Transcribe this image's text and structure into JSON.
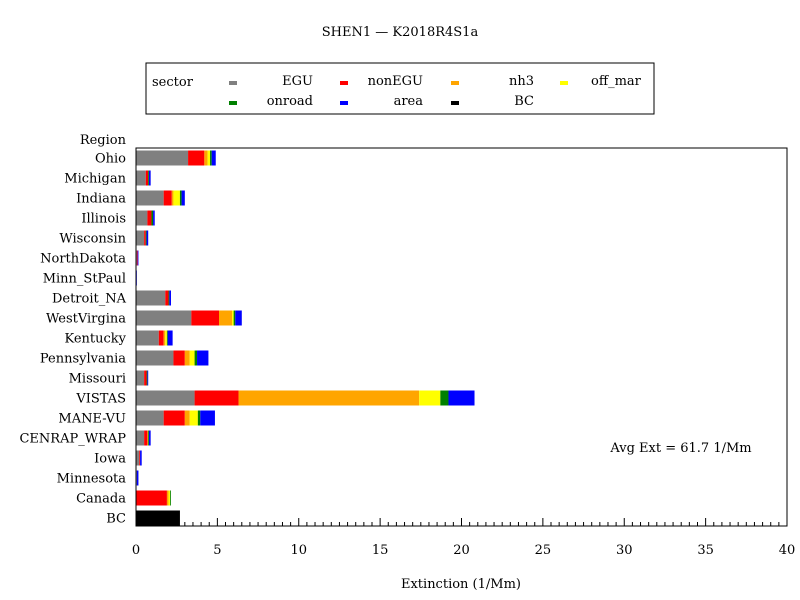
{
  "chart_data": {
    "type": "bar",
    "orientation": "horizontal",
    "stacked": true,
    "title": "SHEN1 — K2018R4S1a",
    "xlabel": "Extinction (1/Mm)",
    "ylabel": "Region",
    "xlim": [
      0,
      40
    ],
    "x_ticks": [
      0,
      5,
      10,
      15,
      20,
      25,
      30,
      35,
      40
    ],
    "legend_title": "sector",
    "legend_position": "top-center",
    "annotation": "Avg Ext =  61.7 1/Mm",
    "categories": [
      "Ohio",
      "Michigan",
      "Indiana",
      "Illinois",
      "Wisconsin",
      "NorthDakota",
      "Minn_StPaul",
      "Detroit_NA",
      "WestVirgina",
      "Kentucky",
      "Pennsylvania",
      "Missouri",
      "VISTAS",
      "MANE-VU",
      "CENRAP_WRAP",
      "Iowa",
      "Minnesota",
      "Canada",
      "BC"
    ],
    "series": [
      {
        "name": "EGU",
        "color": "#808080",
        "values": [
          3.2,
          0.6,
          1.7,
          0.7,
          0.5,
          0.05,
          0.0,
          1.8,
          3.4,
          1.4,
          2.3,
          0.5,
          3.6,
          1.7,
          0.5,
          0.2,
          0.05,
          0.0,
          0.0
        ]
      },
      {
        "name": "nonEGU",
        "color": "#ff0000",
        "values": [
          1.0,
          0.15,
          0.5,
          0.25,
          0.1,
          0.05,
          0.0,
          0.2,
          1.7,
          0.3,
          0.7,
          0.15,
          2.7,
          1.3,
          0.2,
          0.05,
          0.0,
          1.9,
          0.0
        ]
      },
      {
        "name": "nh3",
        "color": "#ffa500",
        "values": [
          0.2,
          0.0,
          0.1,
          0.0,
          0.0,
          0.0,
          0.0,
          0.0,
          0.8,
          0.1,
          0.3,
          0.0,
          11.1,
          0.3,
          0.05,
          0.0,
          0.0,
          0.1,
          0.0
        ]
      },
      {
        "name": "off_mar",
        "color": "#ffff00",
        "values": [
          0.15,
          0.0,
          0.4,
          0.0,
          0.0,
          0.0,
          0.0,
          0.0,
          0.1,
          0.1,
          0.3,
          0.0,
          1.3,
          0.5,
          0.0,
          0.0,
          0.0,
          0.1,
          0.0
        ]
      },
      {
        "name": "onroad",
        "color": "#008000",
        "values": [
          0.1,
          0.05,
          0.1,
          0.1,
          0.05,
          0.0,
          0.0,
          0.05,
          0.1,
          0.05,
          0.15,
          0.05,
          0.5,
          0.15,
          0.05,
          0.0,
          0.0,
          0.05,
          0.0
        ]
      },
      {
        "name": "area",
        "color": "#0000ff",
        "values": [
          0.25,
          0.1,
          0.2,
          0.1,
          0.1,
          0.05,
          0.05,
          0.1,
          0.4,
          0.3,
          0.7,
          0.05,
          1.6,
          0.9,
          0.1,
          0.1,
          0.1,
          0.0,
          0.0
        ]
      },
      {
        "name": "BC",
        "color": "#000000",
        "values": [
          0.0,
          0.0,
          0.0,
          0.0,
          0.0,
          0.0,
          0.0,
          0.0,
          0.0,
          0.0,
          0.0,
          0.0,
          0.0,
          0.0,
          0.0,
          0.0,
          0.0,
          0.0,
          2.7
        ]
      }
    ]
  }
}
